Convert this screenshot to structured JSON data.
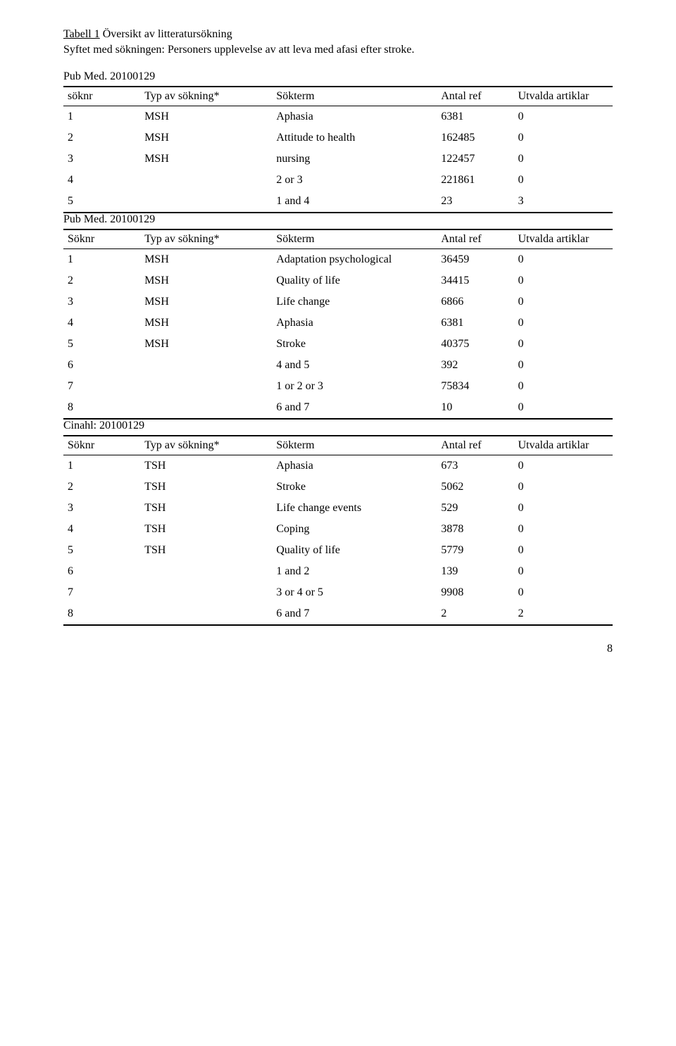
{
  "caption_prefix": "Tabell 1",
  "caption_rest": " Översikt av litteratursökning",
  "purpose": "Syftet med sökningen: Personers upplevelse av att leva med afasi efter stroke.",
  "header_cols": [
    "söknr",
    "Typ av sökning*",
    "Sökterm",
    "Antal ref",
    "Utvalda artiklar"
  ],
  "header_cols2": [
    "Söknr",
    "Typ av sökning*",
    "Sökterm",
    "Antal ref",
    "Utvalda artiklar"
  ],
  "tables": [
    {
      "section_label": "Pub Med. 20100129",
      "header": "header_cols",
      "rows": [
        [
          "1",
          "MSH",
          "Aphasia",
          "6381",
          "0"
        ],
        [
          "2",
          "MSH",
          "Attitude to health",
          "162485",
          "0"
        ],
        [
          "3",
          "MSH",
          "nursing",
          "122457",
          "0"
        ],
        [
          "4",
          "",
          "2 or 3",
          "221861",
          "0"
        ],
        [
          "5",
          "",
          "1 and 4",
          "23",
          "3"
        ]
      ]
    },
    {
      "section_label": "Pub Med. 20100129",
      "header": "header_cols2",
      "rows": [
        [
          "1",
          "MSH",
          "Adaptation psychological",
          "36459",
          "0"
        ],
        [
          "2",
          "MSH",
          "Quality of life",
          "34415",
          "0"
        ],
        [
          "3",
          "MSH",
          "Life change",
          "6866",
          "0"
        ],
        [
          "4",
          "MSH",
          "Aphasia",
          "6381",
          "0"
        ],
        [
          "5",
          "MSH",
          "Stroke",
          "40375",
          "0"
        ],
        [
          "6",
          "",
          "4 and 5",
          "392",
          "0"
        ],
        [
          "7",
          "",
          "1 or 2 or 3",
          "75834",
          "0"
        ],
        [
          "8",
          "",
          "6 and 7",
          "10",
          "0"
        ]
      ]
    },
    {
      "section_label": "Cinahl: 20100129",
      "header": "header_cols2",
      "rows": [
        [
          "1",
          "TSH",
          "Aphasia",
          "673",
          "0"
        ],
        [
          "2",
          "TSH",
          "Stroke",
          "5062",
          "0"
        ],
        [
          "3",
          "TSH",
          "Life change events",
          "529",
          "0"
        ],
        [
          "4",
          "TSH",
          "Coping",
          "3878",
          "0"
        ],
        [
          "5",
          "TSH",
          "Quality of life",
          "5779",
          "0"
        ],
        [
          "6",
          "",
          "1 and 2",
          "139",
          "0"
        ],
        [
          "7",
          "",
          "3 or 4 or 5",
          "9908",
          "0"
        ],
        [
          "8",
          "",
          "6 and 7",
          "2",
          "2"
        ]
      ]
    }
  ],
  "page_number": "8",
  "style": {
    "font_family": "Times New Roman",
    "font_size_pt": 12,
    "col_widths_pct": [
      14,
      24,
      30,
      14,
      18
    ],
    "border_thick": "2px solid #000",
    "border_thin": "1px solid #000",
    "text_color": "#000000",
    "background_color": "#ffffff"
  }
}
